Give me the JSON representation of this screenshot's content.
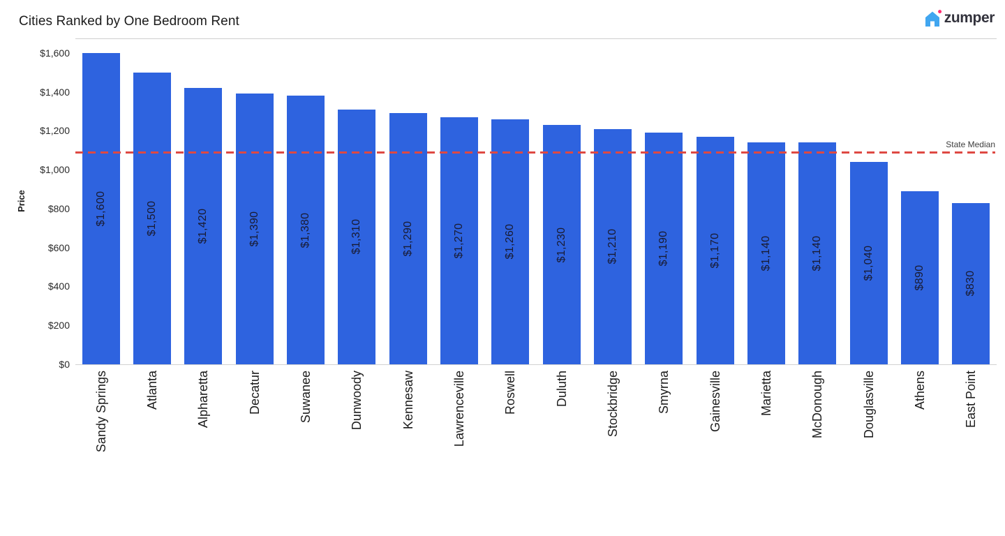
{
  "header": {
    "title": "Cities Ranked by One Bedroom Rent",
    "logo": {
      "brand": "zumper",
      "house_icon_color": "#41a6f0",
      "dot_color": "#ff2e72",
      "text_color": "#32323c"
    }
  },
  "chart_data": {
    "type": "bar",
    "title": "Cities Ranked by One Bedroom Rent",
    "categories": [
      "Sandy Springs",
      "Atlanta",
      "Alpharetta",
      "Decatur",
      "Suwanee",
      "Dunwoody",
      "Kennesaw",
      "Lawrenceville",
      "Roswell",
      "Duluth",
      "Stockbridge",
      "Smyrna",
      "Gainesville",
      "Marietta",
      "McDonough",
      "Douglasville",
      "Athens",
      "East Point"
    ],
    "values": [
      1600,
      1500,
      1420,
      1390,
      1380,
      1310,
      1290,
      1270,
      1260,
      1230,
      1210,
      1190,
      1170,
      1140,
      1140,
      1040,
      890,
      830
    ],
    "bar_labels": [
      "$1,600",
      "$1,500",
      "$1,420",
      "$1,390",
      "$1,380",
      "$1,310",
      "$1,290",
      "$1,270",
      "$1,260",
      "$1,230",
      "$1,210",
      "$1,190",
      "$1,170",
      "$1,140",
      "$1,140",
      "$1,040",
      "$890",
      "$830"
    ],
    "xlabel": "",
    "ylabel": "Price",
    "ylim": [
      0,
      1675
    ],
    "yticks": [
      {
        "value": 0,
        "label": "$0"
      },
      {
        "value": 200,
        "label": "$200"
      },
      {
        "value": 400,
        "label": "$400"
      },
      {
        "value": 600,
        "label": "$600"
      },
      {
        "value": 800,
        "label": "$800"
      },
      {
        "value": 1000,
        "label": "$1,000"
      },
      {
        "value": 1200,
        "label": "$1,200"
      },
      {
        "value": 1400,
        "label": "$1,400"
      },
      {
        "value": 1600,
        "label": "$1,600"
      }
    ],
    "grid": "off",
    "legend": "none",
    "bar_color": "#2e63df",
    "value_label_color": "#191b32",
    "median_line": {
      "value": 1090,
      "label": "State Median",
      "color": "#de4943",
      "style": "dashed"
    }
  }
}
